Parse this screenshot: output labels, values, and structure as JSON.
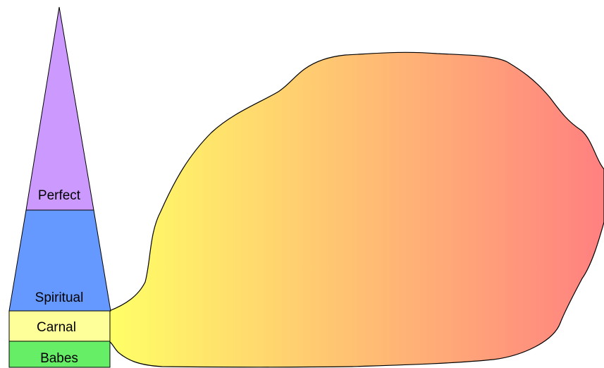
{
  "diagram": {
    "labels": {
      "perfect": "Perfect",
      "spiritual": "Spiritual",
      "carnal": "Carnal",
      "babes": "Babes"
    },
    "colors": {
      "perfect": "#cc99ff",
      "spiritual": "#6699ff",
      "carnal": "#ffff99",
      "babes": "#66ee66",
      "blob_start": "#ffff66",
      "blob_end": "#ff8080",
      "stroke": "#000000"
    }
  }
}
